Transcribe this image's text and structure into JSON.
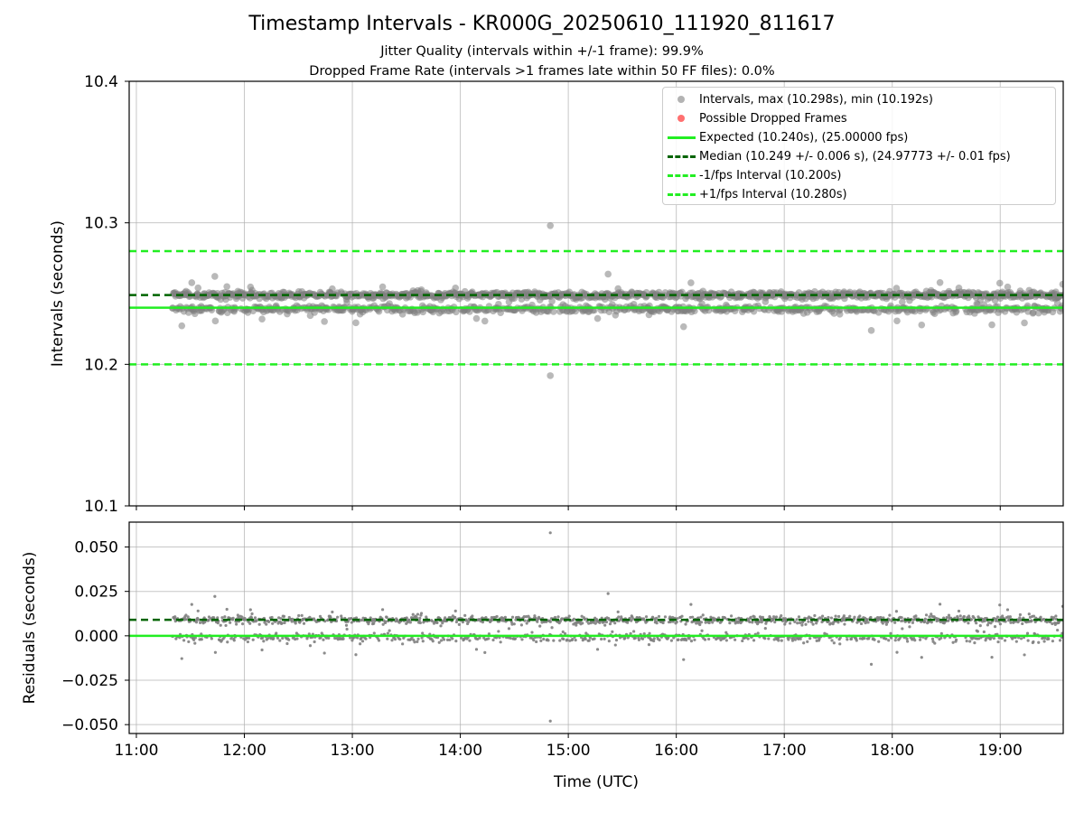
{
  "title": "Timestamp Intervals - KR000G_20250610_111920_811617",
  "subtitle_1": "Jitter Quality (intervals within +/-1 frame): 99.9%",
  "subtitle_2": "Dropped Frame Rate (intervals >1 frames late within 50 FF files): 0.0%",
  "colors": {
    "points": "#808080",
    "dropped": "#ff4040",
    "expected": "#22ee22",
    "median": "#006400",
    "fps_bounds": "#22ee22",
    "grid": "#b0b0b0"
  },
  "legend": [
    {
      "label": "Intervals, max (10.298s), min (10.192s)",
      "kind": "dot",
      "color": "#808080"
    },
    {
      "label": "Possible Dropped Frames",
      "kind": "dot",
      "color": "#ff4040"
    },
    {
      "label": "Expected (10.240s), (25.00000 fps)",
      "kind": "solid",
      "color": "#22ee22"
    },
    {
      "label": "Median (10.249 +/- 0.006 s), (24.97773 +/- 0.01 fps)",
      "kind": "dashed",
      "color": "#006400"
    },
    {
      "label": "-1/fps Interval (10.200s)",
      "kind": "dashed",
      "color": "#22ee22"
    },
    {
      "label": "+1/fps Interval (10.280s)",
      "kind": "dashed",
      "color": "#22ee22"
    }
  ],
  "chart_data": [
    {
      "type": "scatter",
      "name": "intervals",
      "ylabel": "Intervals (seconds)",
      "xlim": [
        "10:56",
        "19:35"
      ],
      "ylim": [
        10.1,
        10.4
      ],
      "yticks": [
        "10.1",
        "10.2",
        "10.3",
        "10.4"
      ],
      "yticks_values": [
        10.1,
        10.2,
        10.3,
        10.4
      ],
      "grid": true,
      "legend_position": "top-right",
      "time_range": [
        "11:20",
        "19:35"
      ],
      "clusters": [
        10.249,
        10.239
      ],
      "max": 10.298,
      "max_time": "14:50",
      "min": 10.192,
      "min_time": "14:50",
      "reference_lines": [
        {
          "label": "Expected",
          "y": 10.24,
          "style": "solid"
        },
        {
          "label": "Median",
          "y": 10.249,
          "style": "dashed"
        },
        {
          "label": "-1/fps Interval",
          "y": 10.2,
          "style": "dashed"
        },
        {
          "label": "+1/fps Interval",
          "y": 10.28,
          "style": "dashed"
        }
      ]
    },
    {
      "type": "scatter",
      "name": "residuals",
      "xlabel": "Time (UTC)",
      "ylabel": "Residuals (seconds)",
      "xlim": [
        "10:56",
        "19:35"
      ],
      "ylim": [
        -0.055,
        0.064
      ],
      "yticks": [
        "0.050",
        "0.025",
        "0.000",
        "−0.025",
        "−0.050"
      ],
      "yticks_values": [
        0.05,
        0.025,
        0.0,
        -0.025,
        -0.05
      ],
      "xticks": [
        "11:00",
        "12:00",
        "13:00",
        "14:00",
        "15:00",
        "16:00",
        "17:00",
        "18:00",
        "19:00"
      ],
      "grid": true,
      "clusters": [
        0.009,
        -0.001
      ],
      "max": 0.058,
      "min": -0.048,
      "reference_lines": [
        {
          "label": "Expected",
          "y": 0.0,
          "style": "solid"
        },
        {
          "label": "Median",
          "y": 0.009,
          "style": "dashed"
        }
      ]
    }
  ]
}
